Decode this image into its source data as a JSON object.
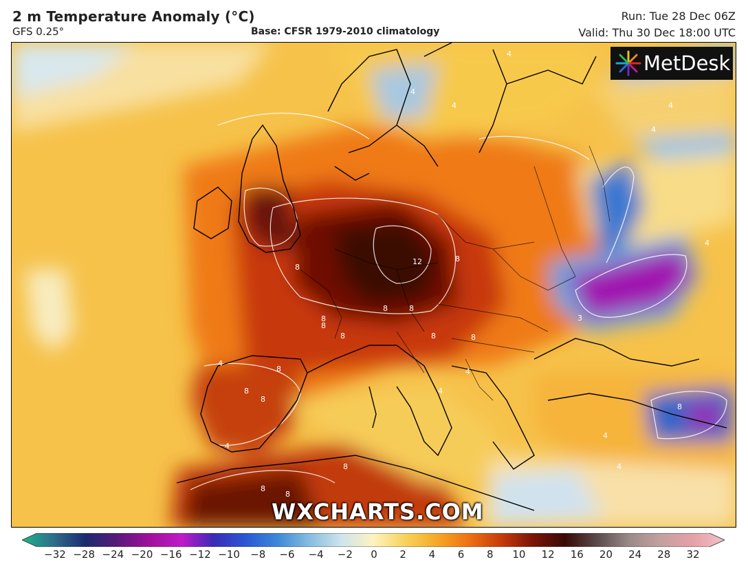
{
  "header": {
    "title": "2 m Temperature Anomaly (°C)",
    "model": "GFS 0.25°",
    "base": "Base: CFSR 1979-2010 climatology",
    "run": "Run: Tue 28 Dec 06Z",
    "valid": "Valid: Thu 30 Dec 18:00 UTC"
  },
  "logo": {
    "text": "MetDesk",
    "icon": "starburst-logo-icon"
  },
  "watermark": "WXCHARTS.COM",
  "colorbar": {
    "ticks": [
      "−32",
      "−28",
      "−24",
      "−20",
      "−16",
      "−12",
      "−10",
      "−8",
      "−6",
      "−4",
      "−2",
      "0",
      "2",
      "4",
      "6",
      "8",
      "10",
      "12",
      "16",
      "20",
      "24",
      "28",
      "32"
    ],
    "colors": [
      "#1fb38a",
      "#2e6d8a",
      "#1c2a6e",
      "#5a1a7a",
      "#a0109c",
      "#c01ac8",
      "#3a2ab8",
      "#2b57d4",
      "#3d88d8",
      "#86bde0",
      "#cfe4ee",
      "#fdf3c0",
      "#f8d35c",
      "#f6a826",
      "#ee7112",
      "#c83a0c",
      "#7a1406",
      "#3a0a06",
      "#5a4a4a",
      "#9a8a86",
      "#c4a0a0",
      "#e5a0a8",
      "#f4c0c8"
    ]
  },
  "contour_labels": [
    "4",
    "4",
    "4",
    "4",
    "4",
    "8",
    "8",
    "8",
    "8",
    "12",
    "8",
    "8",
    "8",
    "8",
    "8",
    "8",
    "8",
    "8",
    "4",
    "4",
    "4",
    "4",
    "4",
    "4",
    "8",
    "8",
    "8",
    "3",
    "8",
    "4"
  ]
}
